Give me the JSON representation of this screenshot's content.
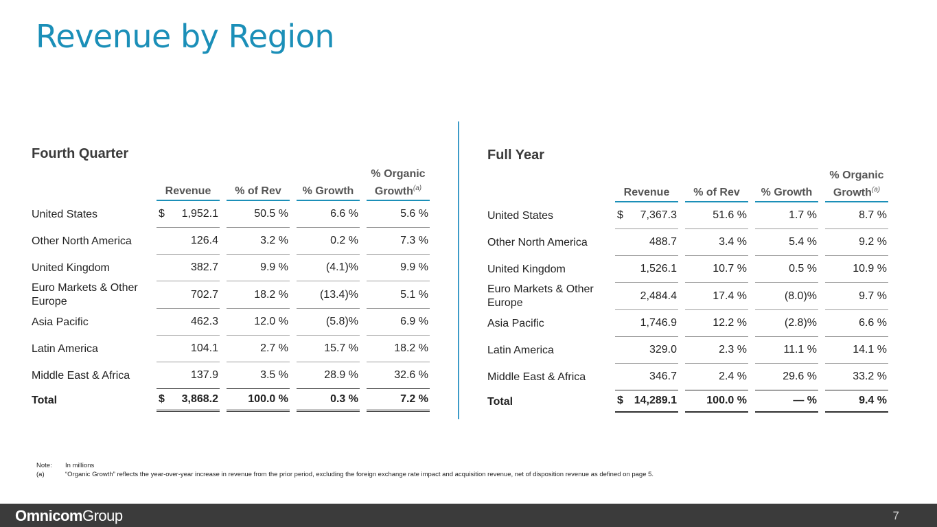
{
  "title": "Revenue by Region",
  "columns": {
    "revenue": "Revenue",
    "pct_rev": "% of Rev",
    "pct_growth": "% Growth",
    "organic_line1": "% Organic",
    "organic_line2": "Growth",
    "organic_note": "(a)"
  },
  "fourth_quarter": {
    "title": "Fourth Quarter",
    "rows": [
      {
        "region": "United States",
        "currency": "$",
        "revenue": "1,952.1",
        "pct_rev": "50.5 %",
        "pct_growth": "6.6 %",
        "organic": "5.6 %"
      },
      {
        "region": "Other North America",
        "currency": "",
        "revenue": "126.4",
        "pct_rev": "3.2 %",
        "pct_growth": "0.2 %",
        "organic": "7.3 %"
      },
      {
        "region": "United Kingdom",
        "currency": "",
        "revenue": "382.7",
        "pct_rev": "9.9 %",
        "pct_growth": "(4.1)%",
        "organic": "9.9 %"
      },
      {
        "region": "Euro Markets & Other Europe",
        "currency": "",
        "revenue": "702.7",
        "pct_rev": "18.2 %",
        "pct_growth": "(13.4)%",
        "organic": "5.1 %"
      },
      {
        "region": "Asia Pacific",
        "currency": "",
        "revenue": "462.3",
        "pct_rev": "12.0 %",
        "pct_growth": "(5.8)%",
        "organic": "6.9 %"
      },
      {
        "region": "Latin America",
        "currency": "",
        "revenue": "104.1",
        "pct_rev": "2.7 %",
        "pct_growth": "15.7 %",
        "organic": "18.2 %"
      },
      {
        "region": "Middle East & Africa",
        "currency": "",
        "revenue": "137.9",
        "pct_rev": "3.5 %",
        "pct_growth": "28.9 %",
        "organic": "32.6 %"
      }
    ],
    "total": {
      "region": "Total",
      "currency": "$",
      "revenue": "3,868.2",
      "pct_rev": "100.0 %",
      "pct_growth": "0.3 %",
      "organic": "7.2 %"
    }
  },
  "full_year": {
    "title": "Full Year",
    "rows": [
      {
        "region": "United States",
        "currency": "$",
        "revenue": "7,367.3",
        "pct_rev": "51.6 %",
        "pct_growth": "1.7 %",
        "organic": "8.7 %"
      },
      {
        "region": "Other North America",
        "currency": "",
        "revenue": "488.7",
        "pct_rev": "3.4 %",
        "pct_growth": "5.4 %",
        "organic": "9.2 %"
      },
      {
        "region": "United Kingdom",
        "currency": "",
        "revenue": "1,526.1",
        "pct_rev": "10.7 %",
        "pct_growth": "0.5 %",
        "organic": "10.9 %"
      },
      {
        "region": "Euro Markets & Other Europe",
        "currency": "",
        "revenue": "2,484.4",
        "pct_rev": "17.4 %",
        "pct_growth": "(8.0)%",
        "organic": "9.7 %"
      },
      {
        "region": "Asia Pacific",
        "currency": "",
        "revenue": "1,746.9",
        "pct_rev": "12.2 %",
        "pct_growth": "(2.8)%",
        "organic": "6.6 %"
      },
      {
        "region": "Latin America",
        "currency": "",
        "revenue": "329.0",
        "pct_rev": "2.3 %",
        "pct_growth": "11.1 %",
        "organic": "14.1 %"
      },
      {
        "region": "Middle East & Africa",
        "currency": "",
        "revenue": "346.7",
        "pct_rev": "2.4 %",
        "pct_growth": "29.6 %",
        "organic": "33.2 %"
      }
    ],
    "total": {
      "region": "Total",
      "currency": "$",
      "revenue": "14,289.1",
      "pct_rev": "100.0 %",
      "pct_growth": "— %",
      "organic": "9.4 %"
    }
  },
  "notes": {
    "note_label": "Note:",
    "note_text": "In millions",
    "a_label": "(a)",
    "a_text": "“Organic Growth” reflects the year-over-year increase in revenue from the prior period, excluding the foreign exchange rate impact and acquisition revenue, net of disposition revenue as defined on page 5."
  },
  "footer": {
    "logo_bold": "Omnicom",
    "logo_light": "Group",
    "page_number": "7"
  }
}
